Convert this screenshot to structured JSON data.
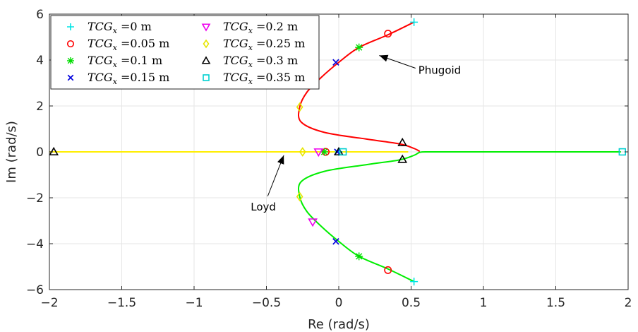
{
  "chart_data": {
    "type": "scatter",
    "xlabel": "Re (rad/s)",
    "ylabel": "Im (rad/s)",
    "xlim": [
      -2,
      2
    ],
    "ylim": [
      -6,
      6
    ],
    "x_ticks": [
      "−2",
      "−1.5",
      "−1",
      "−0.5",
      "0",
      "0.5",
      "1",
      "1.5",
      "2"
    ],
    "y_ticks": [
      "6",
      "4",
      "2",
      "0",
      "−2",
      "−4",
      "−6"
    ],
    "grid": true,
    "legend_placement": "top-left",
    "annotations": [
      {
        "text": "Phugoid",
        "arrow_to": [
          0.28,
          4.2
        ],
        "text_at": [
          0.55,
          3.4
        ]
      },
      {
        "text": "Loyd",
        "arrow_to": [
          -0.38,
          -0.15
        ],
        "text_at": [
          -0.55,
          -2.55
        ]
      }
    ],
    "loci": [
      {
        "color": "#ff0000",
        "points": [
          [
            0.52,
            5.65
          ],
          [
            0.34,
            5.1
          ],
          [
            0.14,
            4.55
          ],
          [
            0.0,
            3.9
          ],
          [
            -0.12,
            3.25
          ],
          [
            -0.22,
            2.6
          ],
          [
            -0.27,
            1.95
          ],
          [
            -0.26,
            1.3
          ],
          [
            -0.1,
            0.85
          ],
          [
            0.2,
            0.55
          ],
          [
            0.42,
            0.35
          ],
          [
            0.52,
            0.15
          ],
          [
            0.56,
            0.02
          ]
        ]
      },
      {
        "color": "#00ee00",
        "points": [
          [
            0.52,
            -5.65
          ],
          [
            0.34,
            -5.1
          ],
          [
            0.14,
            -4.55
          ],
          [
            0.0,
            -3.9
          ],
          [
            -0.12,
            -3.25
          ],
          [
            -0.22,
            -2.6
          ],
          [
            -0.27,
            -1.95
          ],
          [
            -0.26,
            -1.3
          ],
          [
            -0.1,
            -0.85
          ],
          [
            0.2,
            -0.55
          ],
          [
            0.42,
            -0.35
          ],
          [
            0.52,
            -0.15
          ],
          [
            0.56,
            -0.02
          ],
          [
            0.62,
            0.0
          ],
          [
            0.75,
            0.0
          ],
          [
            1.95,
            0.0
          ]
        ]
      },
      {
        "color": "#ffee00",
        "points": [
          [
            -2.0,
            0.0
          ],
          [
            0.48,
            0.0
          ]
        ]
      }
    ],
    "series": [
      {
        "name": "TCGx=0 m",
        "label_var": "TCG",
        "label_sub": "x",
        "label_val": "=0 m",
        "marker": "plus",
        "color": "#00e5e5",
        "points": [
          [
            0.52,
            5.65
          ],
          [
            0.52,
            -5.65
          ],
          [
            0.0,
            0.0
          ]
        ]
      },
      {
        "name": "TCGx=0.05 m",
        "label_var": "TCG",
        "label_sub": "x",
        "label_val": "=0.05 m",
        "marker": "circle",
        "color": "#ff0000",
        "points": [
          [
            0.34,
            5.15
          ],
          [
            0.34,
            -5.15
          ],
          [
            -0.09,
            0.0
          ]
        ]
      },
      {
        "name": "TCGx=0.1 m",
        "label_var": "TCG",
        "label_sub": "x",
        "label_val": "=0.1 m",
        "marker": "star",
        "color": "#00dd00",
        "points": [
          [
            0.14,
            4.55
          ],
          [
            0.14,
            -4.55
          ],
          [
            -0.1,
            0.0
          ]
        ]
      },
      {
        "name": "TCGx=0.15 m",
        "label_var": "TCG",
        "label_sub": "x",
        "label_val": "=0.15 m",
        "marker": "x",
        "color": "#0000dd",
        "points": [
          [
            -0.02,
            3.9
          ],
          [
            -0.02,
            -3.9
          ],
          [
            -0.01,
            0.0
          ]
        ]
      },
      {
        "name": "TCGx=0.2 m",
        "label_var": "TCG",
        "label_sub": "x",
        "label_val": "=0.2 m",
        "marker": "tri-down",
        "color": "#ee00ee",
        "points": [
          [
            -0.18,
            -3.05
          ],
          [
            -0.14,
            0.0
          ]
        ]
      },
      {
        "name": "TCGx=0.25 m",
        "label_var": "TCG",
        "label_sub": "x",
        "label_val": "=0.25 m",
        "marker": "diamond",
        "color": "#e6e600",
        "points": [
          [
            -0.27,
            1.95
          ],
          [
            -0.27,
            -1.95
          ],
          [
            -0.25,
            0.0
          ]
        ]
      },
      {
        "name": "TCGx=0.3 m",
        "label_var": "TCG",
        "label_sub": "x",
        "label_val": "=0.3 m",
        "marker": "tri-up",
        "color": "#000000",
        "points": [
          [
            0.44,
            0.4
          ],
          [
            0.44,
            -0.33
          ],
          [
            -1.97,
            0.0
          ],
          [
            0.0,
            0.0
          ]
        ]
      },
      {
        "name": "TCGx=0.35 m",
        "label_var": "TCG",
        "label_sub": "x",
        "label_val": "=0.35 m",
        "marker": "square",
        "color": "#00d0d0",
        "points": [
          [
            1.96,
            0.0
          ],
          [
            0.03,
            0.0
          ]
        ]
      }
    ]
  }
}
